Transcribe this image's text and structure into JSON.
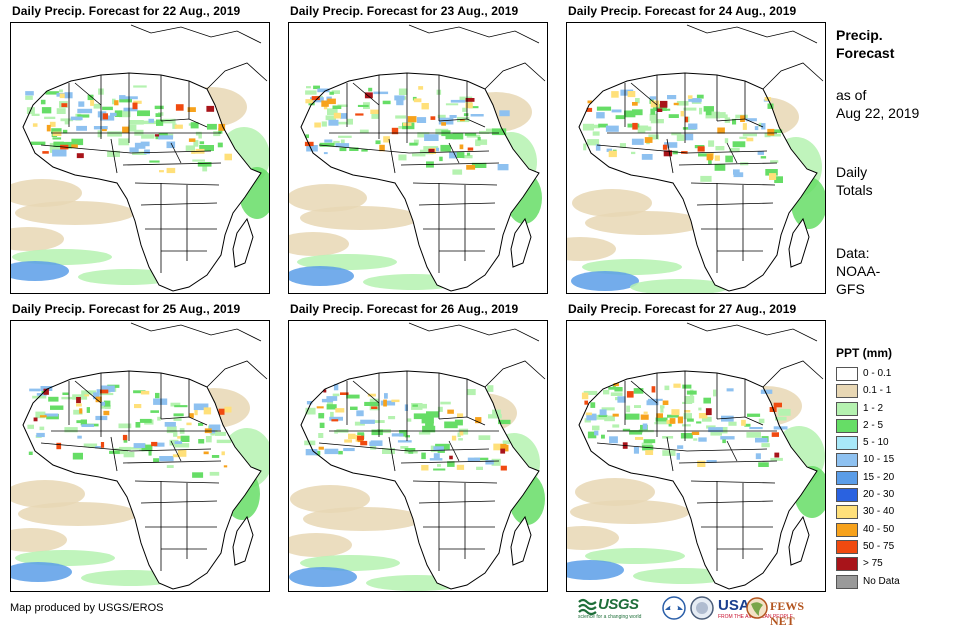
{
  "panels": [
    {
      "title": "Daily Precip. Forecast for 22 Aug., 2019"
    },
    {
      "title": "Daily Precip. Forecast for 23 Aug., 2019"
    },
    {
      "title": "Daily Precip. Forecast for 24 Aug., 2019"
    },
    {
      "title": "Daily Precip. Forecast for 25 Aug., 2019"
    },
    {
      "title": "Daily Precip. Forecast for 26 Aug., 2019"
    },
    {
      "title": "Daily Precip. Forecast for 27 Aug., 2019"
    }
  ],
  "side": {
    "title1": "Precip.",
    "title2": "Forecast",
    "asof1": "as of",
    "asof2": "Aug 22, 2019",
    "daily1": "Daily",
    "daily2": "Totals",
    "data1": "Data:",
    "data2": "NOAA-",
    "data3": "GFS"
  },
  "legend": {
    "title": "PPT (mm)",
    "items": [
      {
        "label": "0 - 0.1",
        "color": "#ffffff"
      },
      {
        "label": "0.1 - 1",
        "color": "#e8d7b4"
      },
      {
        "label": "1 - 2",
        "color": "#b5f2b0"
      },
      {
        "label": "2 - 5",
        "color": "#66dd66"
      },
      {
        "label": "5 - 10",
        "color": "#a8e8f8"
      },
      {
        "label": "10 - 15",
        "color": "#8ec1f0"
      },
      {
        "label": "15 - 20",
        "color": "#5b9de8"
      },
      {
        "label": "20 - 30",
        "color": "#2a62e0"
      },
      {
        "label": "30 - 40",
        "color": "#ffe07a"
      },
      {
        "label": "40 - 50",
        "color": "#f7a21c"
      },
      {
        "label": "50 - 75",
        "color": "#f04a10"
      },
      {
        "label": "> 75",
        "color": "#a8141a"
      },
      {
        "label": "No Data",
        "color": "#9a9a9a"
      }
    ]
  },
  "credit": "Map produced by USGS/EROS",
  "logos": {
    "usgs": "USGS",
    "usgs_tag": "science for a changing world",
    "usaid": "USAID",
    "usaid_tag": "FROM THE AMERICAN PEOPLE",
    "fews": "FEWS NET"
  }
}
